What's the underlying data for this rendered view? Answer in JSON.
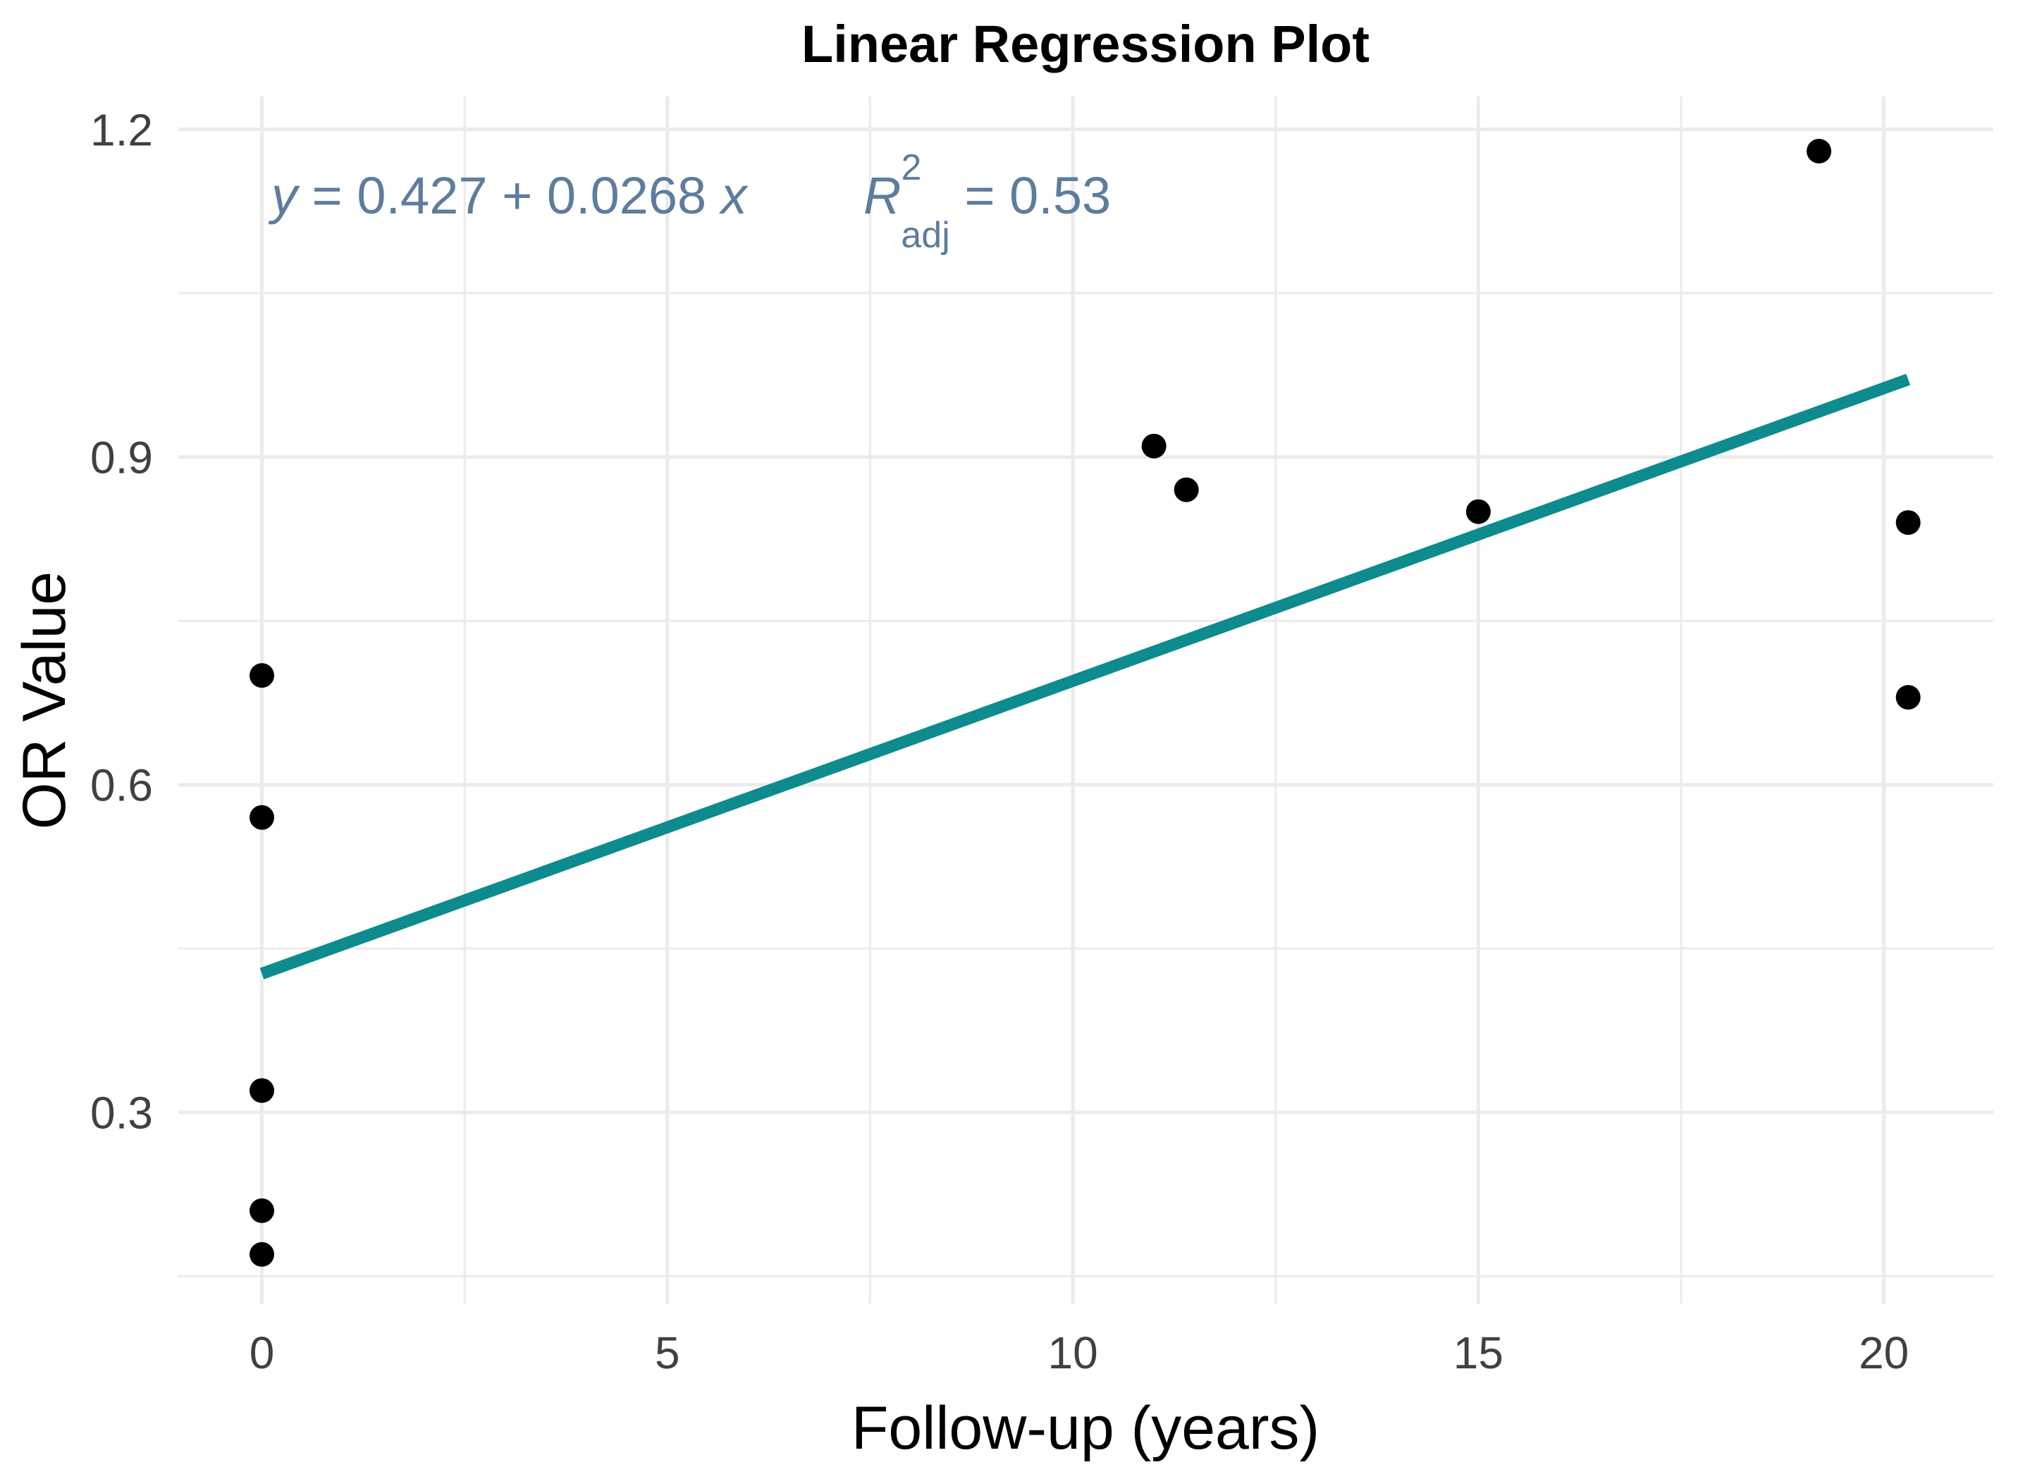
{
  "title": "Linear Regression Plot",
  "annotation": {
    "eq_y": "y",
    "eq_body": " = 0.427 + 0.0268 ",
    "eq_x": "x",
    "r2_R": "R",
    "r2_sup": "2",
    "r2_sub": "adj",
    "r2_eq": " = 0.53",
    "color": "#5d7c9e"
  },
  "chart_data": {
    "type": "scatter",
    "title": "Linear Regression Plot",
    "xlabel": "Follow-up (years)",
    "ylabel": "OR Value",
    "xlim": [
      -1.03,
      21.35
    ],
    "ylim": [
      0.125,
      1.23
    ],
    "x_ticks": [
      0,
      5,
      10,
      15,
      20
    ],
    "x_tick_labels": [
      "0",
      "5",
      "10",
      "15",
      "20"
    ],
    "y_ticks": [
      0.3,
      0.6,
      0.9,
      1.2
    ],
    "y_tick_labels": [
      "0.3",
      "0.6",
      "0.9",
      "1.2"
    ],
    "grid": true,
    "legend": "none",
    "points": [
      [
        0,
        0.7
      ],
      [
        0,
        0.57
      ],
      [
        0,
        0.32
      ],
      [
        0,
        0.21
      ],
      [
        0,
        0.17
      ],
      [
        11,
        0.91
      ],
      [
        11.4,
        0.87
      ],
      [
        15,
        0.85
      ],
      [
        19.2,
        1.18
      ],
      [
        20.3,
        0.84
      ],
      [
        20.3,
        0.68
      ]
    ],
    "regression_line": {
      "x_start": 0,
      "y_start": 0.427,
      "x_end": 20.3,
      "y_end": 0.971,
      "intercept": 0.427,
      "slope": 0.0268,
      "equation": "y = 0.427 + 0.0268 x",
      "r2_adj": 0.53,
      "color": "#0d8b8f"
    },
    "point_color": "#000000",
    "gridline_color": "#ebebeb",
    "tick_label_color": "#404040",
    "background_color": "#ffffff"
  }
}
